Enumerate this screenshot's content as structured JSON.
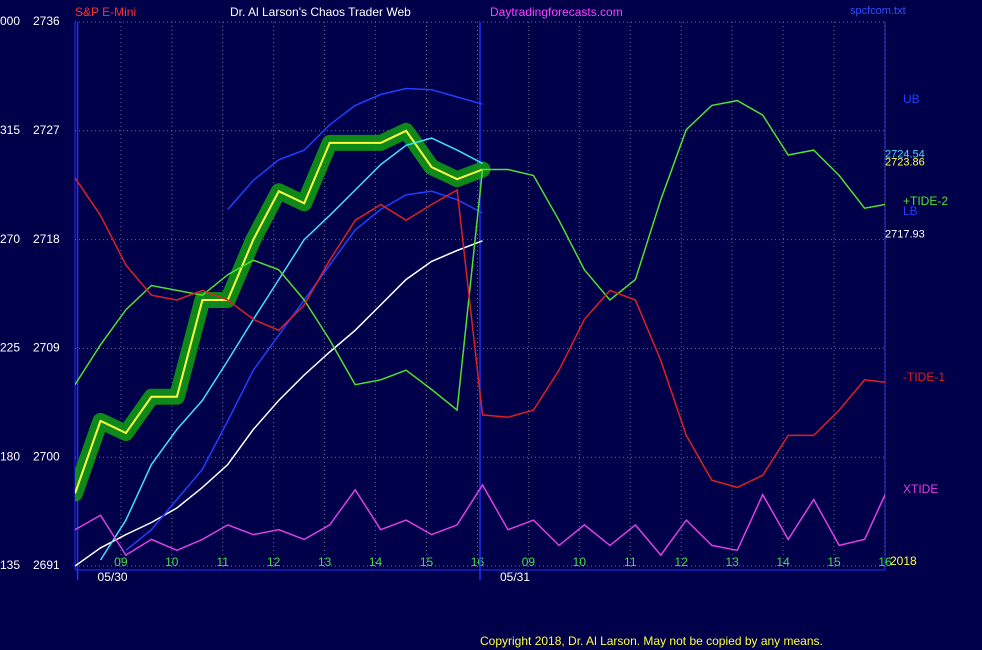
{
  "chart_data": {
    "type": "line",
    "symbol": "S&P E-Mini",
    "title": "Dr. Al Larson's Chaos Trader Web",
    "website": "Daytradingforecasts.com",
    "file": "spcfcom.txt",
    "copyright": "Copyright 2018, Dr. Al Larson. May not be copied by any means.",
    "year": "2018",
    "x": [
      -0.9,
      -0.4,
      0.1,
      0.6,
      1.1,
      1.6,
      2.1,
      2.6,
      3.1,
      3.6,
      4.1,
      4.6,
      5.1,
      5.6,
      6.1,
      6.6,
      7.1,
      7.6,
      8.1,
      8.6,
      9.1,
      9.6,
      10.1,
      10.6,
      11.1,
      11.6,
      12.1,
      12.6,
      13.1,
      13.6,
      14.1,
      14.6,
      15.0
    ],
    "xlim": [
      -0.9,
      15.0
    ],
    "xticks": [
      {
        "value": 0,
        "label": "09"
      },
      {
        "value": 1,
        "label": "10"
      },
      {
        "value": 2,
        "label": "11"
      },
      {
        "value": 3,
        "label": "12"
      },
      {
        "value": 4,
        "label": "13"
      },
      {
        "value": 5,
        "label": "14"
      },
      {
        "value": 6,
        "label": "15"
      },
      {
        "value": 7,
        "label": "16"
      },
      {
        "value": 8,
        "label": "09"
      },
      {
        "value": 9,
        "label": "10"
      },
      {
        "value": 10,
        "label": "11"
      },
      {
        "value": 11,
        "label": "12"
      },
      {
        "value": 12,
        "label": "13"
      },
      {
        "value": 13,
        "label": "14"
      },
      {
        "value": 14,
        "label": "15"
      },
      {
        "value": 15,
        "label": "16"
      }
    ],
    "date_ticks": [
      {
        "value": -0.85,
        "label": "05/30"
      },
      {
        "value": 7.05,
        "label": "05/31"
      }
    ],
    "ylim": [
      2691,
      2736
    ],
    "yticks": [
      2691,
      2700,
      2709,
      2718,
      2727,
      2736
    ],
    "y2lim": [
      135,
      360
    ],
    "y2ticks": [
      135,
      180,
      225,
      270,
      315,
      {
        "value": 360,
        "label": "000"
      }
    ],
    "grid": true,
    "series": [
      {
        "color": "#ffff40",
        "halo": "#10a010",
        "last_value": 2723.86,
        "values": [
          2697,
          2703,
          2702,
          2705,
          2705,
          2713,
          2713,
          2718,
          2722,
          2721,
          2726,
          2726,
          2726,
          2727,
          2724,
          2723,
          2723.8,
          null,
          null,
          null,
          null,
          null,
          null,
          null,
          null,
          null,
          null,
          null,
          null,
          null,
          null,
          null,
          null
        ]
      },
      {
        "color": "#ffffff",
        "last_value": 2717.93,
        "values": [
          2691,
          2692.5,
          2693.6,
          2694.6,
          2695.8,
          2697.5,
          2699.4,
          2702.3,
          2704.7,
          2706.8,
          2708.7,
          2710.5,
          2712.6,
          2714.7,
          2716.2,
          2717.1,
          2717.9,
          null,
          null,
          null,
          null,
          null,
          null,
          null,
          null,
          null,
          null,
          null,
          null,
          null,
          null,
          null,
          null
        ]
      },
      {
        "color": "#40e0ff",
        "last_value": 2724.54,
        "values": [
          null,
          2691.5,
          2694.8,
          2699.4,
          2702.3,
          2704.7,
          2708,
          2711.4,
          2714.7,
          2718,
          2720,
          2722.1,
          2724.2,
          2725.8,
          2726.4,
          2725.4,
          2724.3,
          null,
          null,
          null,
          null,
          null,
          null,
          null,
          null,
          null,
          null,
          null,
          null,
          null,
          null,
          null,
          null
        ]
      },
      {
        "name": "UB",
        "color": "#2040ff",
        "values": [
          null,
          null,
          null,
          null,
          null,
          null,
          2720.5,
          2722.9,
          2724.6,
          2725.4,
          2727.5,
          2729.1,
          2730,
          2730.5,
          2730.4,
          2729.8,
          2729.2,
          null,
          null,
          null,
          null,
          null,
          null,
          null,
          null,
          null,
          null,
          null,
          null,
          null,
          null,
          null,
          null
        ]
      },
      {
        "name": "LB",
        "color": "#2040ff",
        "values": [
          null,
          null,
          2692.3,
          2694,
          2696.5,
          2699,
          2703,
          2707.2,
          2710.1,
          2713,
          2715.9,
          2718.8,
          2720.5,
          2721.7,
          2722,
          2721.3,
          2720.2,
          null,
          null,
          null,
          null,
          null,
          null,
          null,
          null,
          null,
          null,
          null,
          null,
          null,
          null,
          null,
          null
        ]
      },
      {
        "name": "+TIDE-2",
        "color": "#50e030",
        "values": [
          2706,
          2709.3,
          2712.2,
          2714.2,
          2713.8,
          2713.4,
          2715.1,
          2716.3,
          2715.5,
          2713,
          2709.7,
          2706,
          2706.4,
          2707.2,
          2705.6,
          2703.9,
          2723.8,
          2723.8,
          2723.3,
          2719.6,
          2715.5,
          2713,
          2714.7,
          2721.3,
          2727.1,
          2729.1,
          2729.5,
          2728.3,
          2725,
          2725.4,
          2723.3,
          2720.6,
          2720.9
        ]
      },
      {
        "name": "-TIDE-1",
        "color": "#e02020",
        "values": [
          2723.1,
          2720,
          2715.9,
          2713.4,
          2713,
          2713.8,
          2713,
          2711.4,
          2710.5,
          2712.6,
          2716.3,
          2719.6,
          2720.9,
          2719.6,
          2720.9,
          2722.1,
          2703.5,
          2703.3,
          2703.9,
          2707.2,
          2711.4,
          2713.8,
          2713,
          2708,
          2701.8,
          2698.1,
          2697.5,
          2698.5,
          2701.8,
          2701.8,
          2703.9,
          2706.4,
          2706.2
        ]
      },
      {
        "name": "XTIDE",
        "color": "#e040e0",
        "values": [
          2694,
          2695.2,
          2691.9,
          2693.2,
          2692.3,
          2693.2,
          2694.4,
          2693.6,
          2694,
          2693.2,
          2694.4,
          2697.3,
          2694,
          2694.8,
          2693.6,
          2694.4,
          2697.7,
          2694,
          2694.8,
          2692.7,
          2694.4,
          2692.7,
          2694.4,
          2691.9,
          2694.8,
          2692.7,
          2692.3,
          2696.9,
          2693.2,
          2696.5,
          2692.7,
          2693.2,
          2696.9
        ]
      }
    ]
  }
}
